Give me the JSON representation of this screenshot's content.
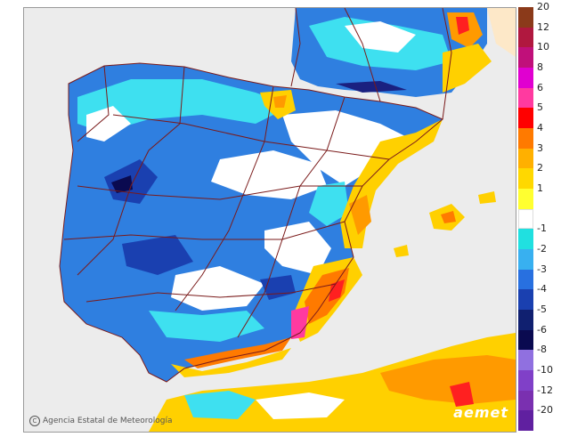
{
  "credit": "Agencia Estatal de Meteorología",
  "credit_symbol": "C",
  "logo": "aemet",
  "legend": [
    {
      "label": "20",
      "color": "#8b3a1a"
    },
    {
      "label": "12",
      "color": "#b0183f"
    },
    {
      "label": "10",
      "color": "#c0107a"
    },
    {
      "label": "8",
      "color": "#e000d0"
    },
    {
      "label": "6",
      "color": "#ff3aa0"
    },
    {
      "label": "5",
      "color": "#ff0000"
    },
    {
      "label": "4",
      "color": "#ff7a00"
    },
    {
      "label": "3",
      "color": "#ffb000"
    },
    {
      "label": "2",
      "color": "#ffd800"
    },
    {
      "label": "1",
      "color": "#ffff30"
    },
    {
      "label": "",
      "color": "#ffffff"
    },
    {
      "label": "-1",
      "color": "#20e0e0"
    },
    {
      "label": "-2",
      "color": "#38b0f0"
    },
    {
      "label": "-3",
      "color": "#2870e0"
    },
    {
      "label": "-4",
      "color": "#1a40b0"
    },
    {
      "label": "-5",
      "color": "#102070"
    },
    {
      "label": "-6",
      "color": "#0a0a50"
    },
    {
      "label": "-8",
      "color": "#9070e0"
    },
    {
      "label": "-10",
      "color": "#8040c8"
    },
    {
      "label": "-12",
      "color": "#7a30b0"
    },
    {
      "label": "-20",
      "color": "#6020a0"
    }
  ]
}
